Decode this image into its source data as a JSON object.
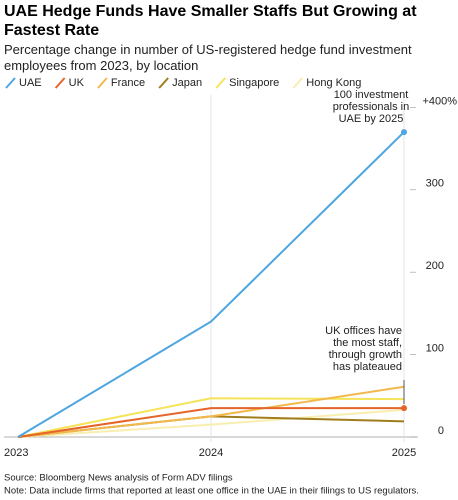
{
  "chart_data": {
    "type": "line",
    "title": "UAE Hedge Funds Have Smaller Staffs But Growing at Fastest Rate",
    "subtitle": "Percentage change in number of US-registered hedge fund investment employees from 2023, by location",
    "categories": [
      "2023",
      "2024",
      "2025"
    ],
    "series": [
      {
        "name": "UAE",
        "color": "#4ea6e0",
        "values": [
          0,
          140,
          370
        ]
      },
      {
        "name": "UK",
        "color": "#e5642b",
        "values": [
          0,
          35,
          35
        ]
      },
      {
        "name": "France",
        "color": "#f2b84b",
        "values": [
          0,
          25,
          61
        ]
      },
      {
        "name": "Japan",
        "color": "#a07d1c",
        "values": [
          0,
          25,
          19
        ]
      },
      {
        "name": "Singapore",
        "color": "#f5e35a",
        "values": [
          0,
          47,
          46
        ]
      },
      {
        "name": "Hong Kong",
        "color": "#f8eeb0",
        "values": [
          0,
          15,
          33
        ]
      }
    ],
    "ylim": [
      0,
      415
    ],
    "yticks": [
      0,
      100,
      200,
      300,
      {
        "value": 400,
        "label": "+400%"
      }
    ],
    "annotations": [
      {
        "lines": [
          "100 investment",
          "professionals in",
          "UAE by 2025"
        ]
      },
      {
        "lines": [
          "UK offices have",
          "the most staff,",
          "through growth",
          "has plateaued"
        ]
      }
    ],
    "source": "Source: Bloomberg News analysis of Form ADV filings",
    "note": "Note: Data include firms that reported at least one office in the UAE in their filings to US regulators."
  }
}
